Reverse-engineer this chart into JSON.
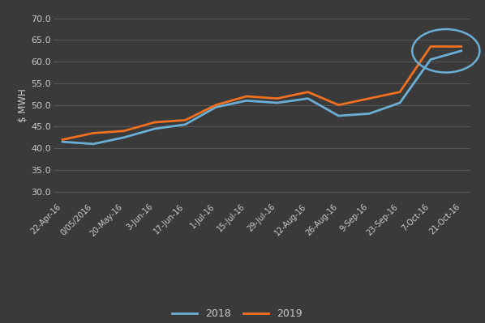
{
  "x_labels": [
    "22-Apr-16",
    "0/05/2016",
    "20-May-16",
    "3-Jun-16",
    "17-Jun-16",
    "1-Jul-16",
    "15-Jul-16",
    "29-Jul-16",
    "12-Aug-16",
    "26-Aug-16",
    "9-Sep-16",
    "23-Sep-16",
    "7-Oct-16",
    "21-Oct-16"
  ],
  "y2018": [
    41.5,
    41.0,
    42.5,
    44.5,
    45.5,
    49.5,
    51.0,
    50.5,
    51.5,
    47.5,
    48.0,
    50.5,
    60.5,
    62.5
  ],
  "y2019": [
    42.0,
    43.5,
    44.0,
    46.0,
    46.5,
    50.0,
    52.0,
    51.5,
    53.0,
    50.0,
    51.5,
    53.0,
    63.5,
    63.5
  ],
  "color_2018": "#6baed6",
  "color_2019": "#f07020",
  "ylim_min": 28.0,
  "ylim_max": 72.0,
  "yticks": [
    30.0,
    35.0,
    40.0,
    45.0,
    50.0,
    55.0,
    60.0,
    65.0,
    70.0
  ],
  "ylabel": "$ MWH",
  "bg_color": "#3a3a3a",
  "grid_color": "#555555",
  "text_color": "#cccccc",
  "ellipse_color": "#6baed6",
  "legend_2018": "2018",
  "legend_2019": "2019"
}
